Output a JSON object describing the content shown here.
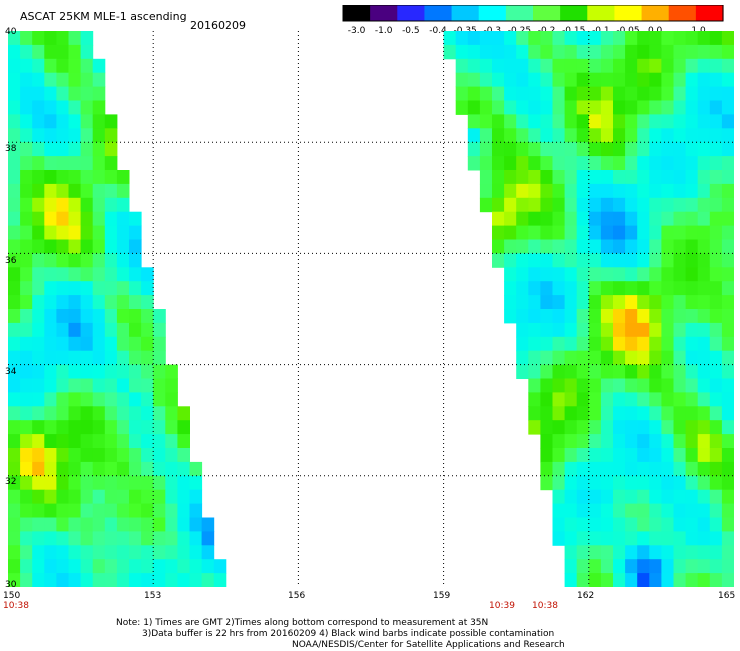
{
  "header": {
    "product": "ASCAT 25KM MLE-1 ascending",
    "date": "20160209"
  },
  "colorbar": {
    "tick_labels": [
      "-3.0",
      "-1.0",
      "-0.5",
      "-0.4",
      "-0.35",
      "-0.3",
      "-0.25",
      "-0.2",
      "-0.15",
      "-0.1",
      "-0.05",
      "0.0",
      "1.0"
    ],
    "colors": [
      "#000000",
      "#4a0080",
      "#2828ff",
      "#0078ff",
      "#00c8ff",
      "#00ffff",
      "#40ffa0",
      "#60ff40",
      "#20e000",
      "#c8ff00",
      "#ffff00",
      "#ffb000",
      "#ff5000",
      "#ff0000"
    ]
  },
  "axes": {
    "lon_labels": [
      "150",
      "153",
      "156",
      "159",
      "162",
      "165"
    ],
    "lat_labels": [
      "40",
      "38",
      "36",
      "34",
      "32",
      "30"
    ]
  },
  "pass_times": [
    "10:38",
    "10:39",
    "10:38"
  ],
  "notes": [
    "Note: 1) Times are GMT 2)Times along bottom correspond to measurement at 35N",
    "3)Data buffer is 22 hrs from 20160209 4) Black wind barbs indicate possible contamination",
    "NOAA/NESDIS/Center for Satellite Applications and Research"
  ],
  "map": {
    "lon_range": [
      150,
      165
    ],
    "lat_range": [
      30,
      40
    ],
    "grid": true,
    "swaths": [
      {
        "name": "west",
        "left_edge_lon": [
          150,
          150
        ],
        "right_edge_lat_lon": [
          [
            40,
            151.7
          ],
          [
            30,
            154.5
          ]
        ]
      },
      {
        "name": "east",
        "left_edge_lat_lon": [
          [
            40,
            159.0
          ],
          [
            30,
            161.6
          ]
        ],
        "right_edge_lon": [
          165,
          165
        ]
      }
    ]
  }
}
